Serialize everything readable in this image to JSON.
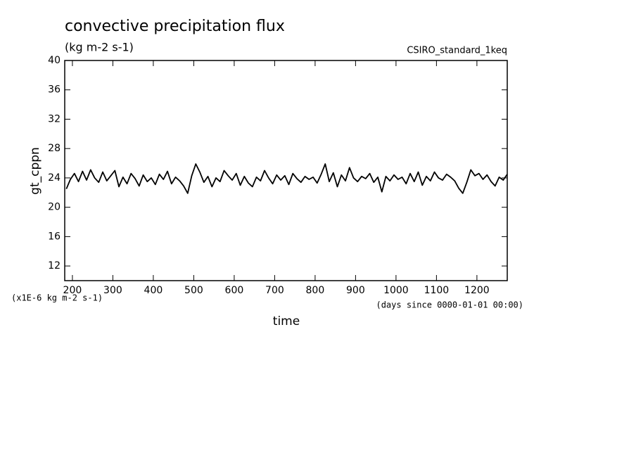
{
  "chart_data": {
    "type": "line",
    "title": "convective precipitation flux",
    "subtitle": "(kg m-2 s-1)",
    "annotation": "CSIRO_standard_1keq",
    "y_label": "gt_cppn",
    "x_label": "time",
    "y_units": "(x1E-6 kg m-2 s-1)",
    "x_units": "(days since 0000-01-01 00:00)",
    "xlim": [
      181,
      1275
    ],
    "ylim": [
      10,
      40
    ],
    "xticks": [
      200,
      300,
      400,
      500,
      600,
      700,
      800,
      900,
      1000,
      1100,
      1200
    ],
    "yticks": [
      12,
      16,
      20,
      24,
      28,
      32,
      36,
      40
    ],
    "x": [
      185,
      195,
      205,
      215,
      225,
      235,
      245,
      255,
      265,
      275,
      285,
      295,
      305,
      315,
      325,
      335,
      345,
      355,
      365,
      375,
      385,
      395,
      405,
      415,
      425,
      435,
      445,
      455,
      465,
      475,
      485,
      495,
      505,
      515,
      525,
      535,
      545,
      555,
      565,
      575,
      585,
      595,
      605,
      615,
      625,
      635,
      645,
      655,
      665,
      675,
      685,
      695,
      705,
      715,
      725,
      735,
      745,
      755,
      765,
      775,
      785,
      795,
      805,
      815,
      825,
      835,
      845,
      855,
      865,
      875,
      885,
      895,
      905,
      915,
      925,
      935,
      945,
      955,
      965,
      975,
      985,
      995,
      1005,
      1015,
      1025,
      1035,
      1045,
      1055,
      1065,
      1075,
      1085,
      1095,
      1105,
      1115,
      1125,
      1135,
      1145,
      1155,
      1165,
      1175,
      1185,
      1195,
      1205,
      1215,
      1225,
      1235,
      1245,
      1255,
      1265,
      1275
    ],
    "series": [
      {
        "color": "#000000",
        "values": [
          22.5,
          23.8,
          24.6,
          23.5,
          24.9,
          23.7,
          25.1,
          24.0,
          23.4,
          24.8,
          23.6,
          24.3,
          25.0,
          22.8,
          24.1,
          23.2,
          24.6,
          23.9,
          22.9,
          24.4,
          23.5,
          24.0,
          23.1,
          24.5,
          23.8,
          24.9,
          23.2,
          24.1,
          23.6,
          22.9,
          21.9,
          24.3,
          25.9,
          24.8,
          23.4,
          24.2,
          22.8,
          24.0,
          23.5,
          25.0,
          24.3,
          23.7,
          24.6,
          23.0,
          24.2,
          23.3,
          22.8,
          24.1,
          23.6,
          25.0,
          24.0,
          23.2,
          24.4,
          23.7,
          24.3,
          23.1,
          24.6,
          23.9,
          23.4,
          24.2,
          23.8,
          24.1,
          23.3,
          24.5,
          25.9,
          23.5,
          24.7,
          22.8,
          24.4,
          23.6,
          25.4,
          24.0,
          23.5,
          24.2,
          23.9,
          24.6,
          23.4,
          24.1,
          22.1,
          24.2,
          23.6,
          24.4,
          23.8,
          24.1,
          23.2,
          24.6,
          23.5,
          24.8,
          23.0,
          24.2,
          23.6,
          24.8,
          24.0,
          23.7,
          24.5,
          24.1,
          23.6,
          22.6,
          21.9,
          23.4,
          25.1,
          24.3,
          24.6,
          23.8,
          24.4,
          23.5,
          22.9,
          24.1,
          23.7,
          24.5
        ]
      }
    ]
  }
}
